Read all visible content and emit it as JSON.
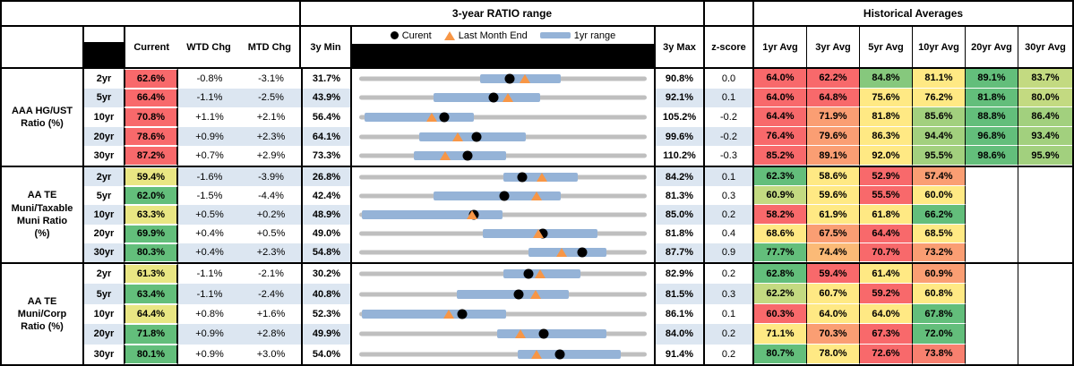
{
  "header": {
    "chart_section_title": "3-year RATIO range",
    "averages_title": "Historical Averages",
    "cols": {
      "current": "Current",
      "wtd": "WTD Chg",
      "mtd": "MTD Chg",
      "min": "3y Min",
      "max": "3y Max",
      "zscore": "z-score"
    },
    "avg_cols": [
      "1yr Avg",
      "3yr Avg",
      "5yr Avg",
      "10yr Avg",
      "20yr Avg",
      "30yr Avg"
    ]
  },
  "legend": {
    "current": "Curent",
    "last_month": "Last Month End",
    "range": "1yr range"
  },
  "palette": {
    "red": "#F8696B",
    "salmon": "#F8806F",
    "orange": "#FA9E73",
    "ltorange": "#FBBA77",
    "yellow": "#FFE984",
    "dullyellow": "#E9E683",
    "ygreen": "#C3DA81",
    "lgreen": "#A2D07E",
    "mgreen": "#86C87D",
    "green": "#63BE7B",
    "band": "#DCE6F1",
    "bar": "#95B3D7",
    "track": "#BFBFBF",
    "dot": "#000000",
    "triangle": "#F79646"
  },
  "chart_data": {
    "type": "table",
    "value_format": "percent",
    "description": "Muni ratio monitor: Current, WTD/MTD change, 3-year min/max with 1-year range bar (dot = current, triangle = last month end = current - MTD chg), z-score, historical averages.",
    "groups": [
      {
        "label": "AAA HG/UST\nRatio (%)",
        "rows": [
          {
            "tenor": "2yr",
            "banded": false,
            "current": 62.6,
            "ccolor": "red",
            "wtd": -0.8,
            "mtd": -3.1,
            "min": 31.7,
            "max": 90.8,
            "bar": [
              0.42,
              0.7
            ],
            "z": "0.0",
            "avgs": [
              [
                64.0,
                "red"
              ],
              [
                62.2,
                "red"
              ],
              [
                84.8,
                "mgreen"
              ],
              [
                81.1,
                "yellow"
              ],
              [
                89.1,
                "green"
              ],
              [
                83.7,
                "ygreen"
              ]
            ]
          },
          {
            "tenor": "5yr",
            "banded": true,
            "current": 66.4,
            "ccolor": "red",
            "wtd": -1.1,
            "mtd": -2.5,
            "min": 43.9,
            "max": 92.1,
            "bar": [
              0.26,
              0.63
            ],
            "z": "0.1",
            "avgs": [
              [
                64.0,
                "red"
              ],
              [
                64.8,
                "red"
              ],
              [
                75.6,
                "yellow"
              ],
              [
                76.2,
                "yellow"
              ],
              [
                81.8,
                "green"
              ],
              [
                80.0,
                "ygreen"
              ]
            ]
          },
          {
            "tenor": "10yr",
            "banded": false,
            "current": 70.8,
            "ccolor": "red",
            "wtd": 1.1,
            "mtd": 2.1,
            "min": 56.4,
            "max": 105.2,
            "bar": [
              0.02,
              0.4
            ],
            "z": "-0.2",
            "avgs": [
              [
                64.4,
                "red"
              ],
              [
                71.9,
                "orange"
              ],
              [
                81.8,
                "yellow"
              ],
              [
                85.6,
                "lgreen"
              ],
              [
                88.8,
                "green"
              ],
              [
                86.4,
                "lgreen"
              ]
            ]
          },
          {
            "tenor": "20yr",
            "banded": true,
            "current": 78.6,
            "ccolor": "red",
            "wtd": 0.9,
            "mtd": 2.3,
            "min": 64.1,
            "max": 99.6,
            "bar": [
              0.21,
              0.58
            ],
            "z": "-0.2",
            "avgs": [
              [
                76.4,
                "red"
              ],
              [
                79.6,
                "orange"
              ],
              [
                86.3,
                "yellow"
              ],
              [
                94.4,
                "lgreen"
              ],
              [
                96.8,
                "green"
              ],
              [
                93.4,
                "lgreen"
              ]
            ]
          },
          {
            "tenor": "30yr",
            "banded": false,
            "current": 87.2,
            "ccolor": "red",
            "wtd": 0.7,
            "mtd": 2.9,
            "min": 73.3,
            "max": 110.2,
            "bar": [
              0.19,
              0.51
            ],
            "z": "-0.3",
            "avgs": [
              [
                85.2,
                "red"
              ],
              [
                89.1,
                "orange"
              ],
              [
                92.0,
                "yellow"
              ],
              [
                95.5,
                "lgreen"
              ],
              [
                98.6,
                "green"
              ],
              [
                95.9,
                "lgreen"
              ]
            ]
          }
        ]
      },
      {
        "label": "AA TE\nMuni/Taxable\nMuni Ratio\n(%)",
        "rows": [
          {
            "tenor": "2yr",
            "banded": true,
            "current": 59.4,
            "ccolor": "dullyellow",
            "wtd": -1.6,
            "mtd": -3.9,
            "min": 26.8,
            "max": 84.2,
            "bar": [
              0.5,
              0.76
            ],
            "z": "0.1",
            "avgs": [
              [
                62.3,
                "green"
              ],
              [
                58.6,
                "yellow"
              ],
              [
                52.9,
                "red"
              ],
              [
                57.4,
                "orange"
              ]
            ]
          },
          {
            "tenor": "5yr",
            "banded": false,
            "current": 62.0,
            "ccolor": "green",
            "wtd": -1.5,
            "mtd": -4.4,
            "min": 42.4,
            "max": 81.3,
            "bar": [
              0.26,
              0.7
            ],
            "z": "0.3",
            "avgs": [
              [
                60.9,
                "ygreen"
              ],
              [
                59.6,
                "yellow"
              ],
              [
                55.5,
                "red"
              ],
              [
                60.0,
                "yellow"
              ]
            ]
          },
          {
            "tenor": "10yr",
            "banded": true,
            "current": 63.3,
            "ccolor": "dullyellow",
            "wtd": 0.5,
            "mtd": 0.2,
            "min": 48.9,
            "max": 85.0,
            "bar": [
              0.01,
              0.5
            ],
            "z": "0.2",
            "avgs": [
              [
                58.2,
                "red"
              ],
              [
                61.9,
                "yellow"
              ],
              [
                61.8,
                "yellow"
              ],
              [
                66.2,
                "green"
              ]
            ]
          },
          {
            "tenor": "20yr",
            "banded": false,
            "current": 69.9,
            "ccolor": "green",
            "wtd": 0.4,
            "mtd": 0.5,
            "min": 49.0,
            "max": 81.8,
            "bar": [
              0.43,
              0.83
            ],
            "z": "0.4",
            "avgs": [
              [
                68.6,
                "yellow"
              ],
              [
                67.5,
                "orange"
              ],
              [
                64.4,
                "red"
              ],
              [
                68.5,
                "yellow"
              ]
            ]
          },
          {
            "tenor": "30yr",
            "banded": true,
            "current": 80.3,
            "ccolor": "green",
            "wtd": 0.4,
            "mtd": 2.3,
            "min": 54.8,
            "max": 87.7,
            "bar": [
              0.59,
              0.86
            ],
            "z": "0.9",
            "avgs": [
              [
                77.7,
                "green"
              ],
              [
                74.4,
                "ltorange"
              ],
              [
                70.7,
                "red"
              ],
              [
                73.2,
                "orange"
              ]
            ]
          }
        ]
      },
      {
        "label": "AA TE\nMuni/Corp\nRatio (%)",
        "rows": [
          {
            "tenor": "2yr",
            "banded": false,
            "current": 61.3,
            "ccolor": "dullyellow",
            "wtd": -1.1,
            "mtd": -2.1,
            "min": 30.2,
            "max": 82.9,
            "bar": [
              0.5,
              0.77
            ],
            "z": "0.2",
            "avgs": [
              [
                62.8,
                "green"
              ],
              [
                59.4,
                "red"
              ],
              [
                61.4,
                "yellow"
              ],
              [
                60.9,
                "orange"
              ]
            ]
          },
          {
            "tenor": "5yr",
            "banded": true,
            "current": 63.4,
            "ccolor": "green",
            "wtd": -1.1,
            "mtd": -2.4,
            "min": 40.8,
            "max": 81.5,
            "bar": [
              0.34,
              0.73
            ],
            "z": "0.3",
            "avgs": [
              [
                62.2,
                "ygreen"
              ],
              [
                60.7,
                "yellow"
              ],
              [
                59.2,
                "red"
              ],
              [
                60.8,
                "yellow"
              ]
            ]
          },
          {
            "tenor": "10yr",
            "banded": false,
            "current": 64.4,
            "ccolor": "dullyellow",
            "wtd": 0.8,
            "mtd": 1.6,
            "min": 52.3,
            "max": 86.1,
            "bar": [
              0.01,
              0.51
            ],
            "z": "0.1",
            "avgs": [
              [
                60.3,
                "red"
              ],
              [
                64.0,
                "yellow"
              ],
              [
                64.0,
                "yellow"
              ],
              [
                67.8,
                "green"
              ]
            ]
          },
          {
            "tenor": "20yr",
            "banded": true,
            "current": 71.8,
            "ccolor": "green",
            "wtd": 0.9,
            "mtd": 2.8,
            "min": 49.9,
            "max": 84.0,
            "bar": [
              0.48,
              0.86
            ],
            "z": "0.2",
            "avgs": [
              [
                71.1,
                "yellow"
              ],
              [
                70.3,
                "orange"
              ],
              [
                67.3,
                "red"
              ],
              [
                72.0,
                "green"
              ]
            ]
          },
          {
            "tenor": "30yr",
            "banded": false,
            "current": 80.1,
            "ccolor": "green",
            "wtd": 0.9,
            "mtd": 3.0,
            "min": 54.0,
            "max": 91.4,
            "bar": [
              0.55,
              0.91
            ],
            "z": "0.2",
            "avgs": [
              [
                80.7,
                "green"
              ],
              [
                78.0,
                "yellow"
              ],
              [
                72.6,
                "red"
              ],
              [
                73.8,
                "salmon"
              ]
            ]
          }
        ]
      }
    ]
  }
}
